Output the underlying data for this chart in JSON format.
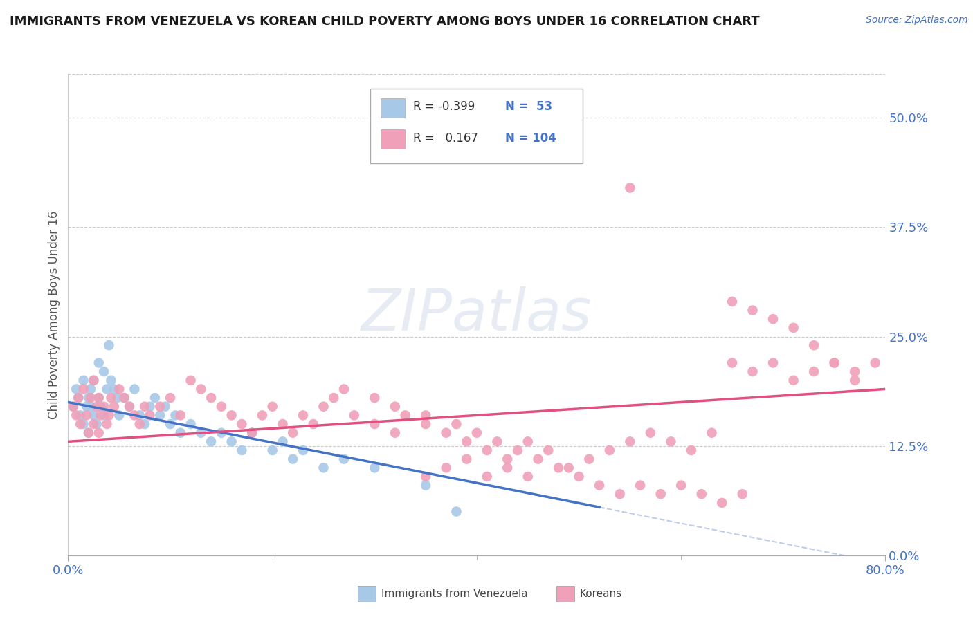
{
  "title": "IMMIGRANTS FROM VENEZUELA VS KOREAN CHILD POVERTY AMONG BOYS UNDER 16 CORRELATION CHART",
  "source": "Source: ZipAtlas.com",
  "ylabel": "Child Poverty Among Boys Under 16",
  "ytick_labels": [
    "0.0%",
    "12.5%",
    "25.0%",
    "37.5%",
    "50.0%"
  ],
  "ytick_values": [
    0.0,
    0.125,
    0.25,
    0.375,
    0.5
  ],
  "xlim": [
    0.0,
    0.8
  ],
  "ylim": [
    0.0,
    0.55
  ],
  "color_venezuela": "#a8c8e8",
  "color_korean": "#f0a0b8",
  "color_line_venezuela": "#4472c4",
  "color_line_korean": "#e05080",
  "color_axis": "#4472c4",
  "background_color": "#ffffff",
  "watermark": "ZIPatlas",
  "venezuela_x": [
    0.005,
    0.008,
    0.01,
    0.012,
    0.015,
    0.015,
    0.018,
    0.02,
    0.02,
    0.022,
    0.022,
    0.025,
    0.025,
    0.028,
    0.03,
    0.03,
    0.032,
    0.035,
    0.035,
    0.038,
    0.04,
    0.042,
    0.045,
    0.048,
    0.05,
    0.055,
    0.06,
    0.065,
    0.07,
    0.075,
    0.08,
    0.085,
    0.09,
    0.095,
    0.1,
    0.105,
    0.11,
    0.12,
    0.13,
    0.14,
    0.15,
    0.16,
    0.17,
    0.18,
    0.2,
    0.21,
    0.22,
    0.23,
    0.25,
    0.27,
    0.3,
    0.35,
    0.38
  ],
  "venezuela_y": [
    0.17,
    0.19,
    0.18,
    0.16,
    0.2,
    0.15,
    0.17,
    0.18,
    0.14,
    0.17,
    0.19,
    0.2,
    0.16,
    0.15,
    0.22,
    0.18,
    0.17,
    0.21,
    0.16,
    0.19,
    0.24,
    0.2,
    0.19,
    0.18,
    0.16,
    0.18,
    0.17,
    0.19,
    0.16,
    0.15,
    0.17,
    0.18,
    0.16,
    0.17,
    0.15,
    0.16,
    0.14,
    0.15,
    0.14,
    0.13,
    0.14,
    0.13,
    0.12,
    0.14,
    0.12,
    0.13,
    0.11,
    0.12,
    0.1,
    0.11,
    0.1,
    0.08,
    0.05
  ],
  "korean_x": [
    0.005,
    0.008,
    0.01,
    0.012,
    0.015,
    0.018,
    0.02,
    0.022,
    0.025,
    0.025,
    0.028,
    0.03,
    0.03,
    0.032,
    0.035,
    0.038,
    0.04,
    0.042,
    0.045,
    0.05,
    0.055,
    0.06,
    0.065,
    0.07,
    0.075,
    0.08,
    0.09,
    0.1,
    0.11,
    0.12,
    0.13,
    0.14,
    0.15,
    0.16,
    0.17,
    0.18,
    0.19,
    0.2,
    0.21,
    0.22,
    0.23,
    0.24,
    0.25,
    0.26,
    0.27,
    0.28,
    0.3,
    0.32,
    0.33,
    0.35,
    0.37,
    0.39,
    0.41,
    0.43,
    0.45,
    0.47,
    0.49,
    0.51,
    0.53,
    0.55,
    0.57,
    0.59,
    0.61,
    0.63,
    0.65,
    0.67,
    0.69,
    0.71,
    0.73,
    0.75,
    0.77,
    0.79,
    0.35,
    0.37,
    0.39,
    0.41,
    0.43,
    0.45,
    0.55,
    0.65,
    0.67,
    0.69,
    0.71,
    0.73,
    0.75,
    0.77,
    0.3,
    0.32,
    0.35,
    0.38,
    0.4,
    0.42,
    0.44,
    0.46,
    0.48,
    0.5,
    0.52,
    0.54,
    0.56,
    0.58,
    0.6,
    0.62,
    0.64,
    0.66
  ],
  "korean_y": [
    0.17,
    0.16,
    0.18,
    0.15,
    0.19,
    0.16,
    0.14,
    0.18,
    0.2,
    0.15,
    0.17,
    0.18,
    0.14,
    0.16,
    0.17,
    0.15,
    0.16,
    0.18,
    0.17,
    0.19,
    0.18,
    0.17,
    0.16,
    0.15,
    0.17,
    0.16,
    0.17,
    0.18,
    0.16,
    0.2,
    0.19,
    0.18,
    0.17,
    0.16,
    0.15,
    0.14,
    0.16,
    0.17,
    0.15,
    0.14,
    0.16,
    0.15,
    0.17,
    0.18,
    0.19,
    0.16,
    0.15,
    0.14,
    0.16,
    0.15,
    0.14,
    0.13,
    0.12,
    0.11,
    0.13,
    0.12,
    0.1,
    0.11,
    0.12,
    0.13,
    0.14,
    0.13,
    0.12,
    0.14,
    0.22,
    0.21,
    0.22,
    0.2,
    0.21,
    0.22,
    0.2,
    0.22,
    0.09,
    0.1,
    0.11,
    0.09,
    0.1,
    0.09,
    0.42,
    0.29,
    0.28,
    0.27,
    0.26,
    0.24,
    0.22,
    0.21,
    0.18,
    0.17,
    0.16,
    0.15,
    0.14,
    0.13,
    0.12,
    0.11,
    0.1,
    0.09,
    0.08,
    0.07,
    0.08,
    0.07,
    0.08,
    0.07,
    0.06,
    0.07
  ]
}
